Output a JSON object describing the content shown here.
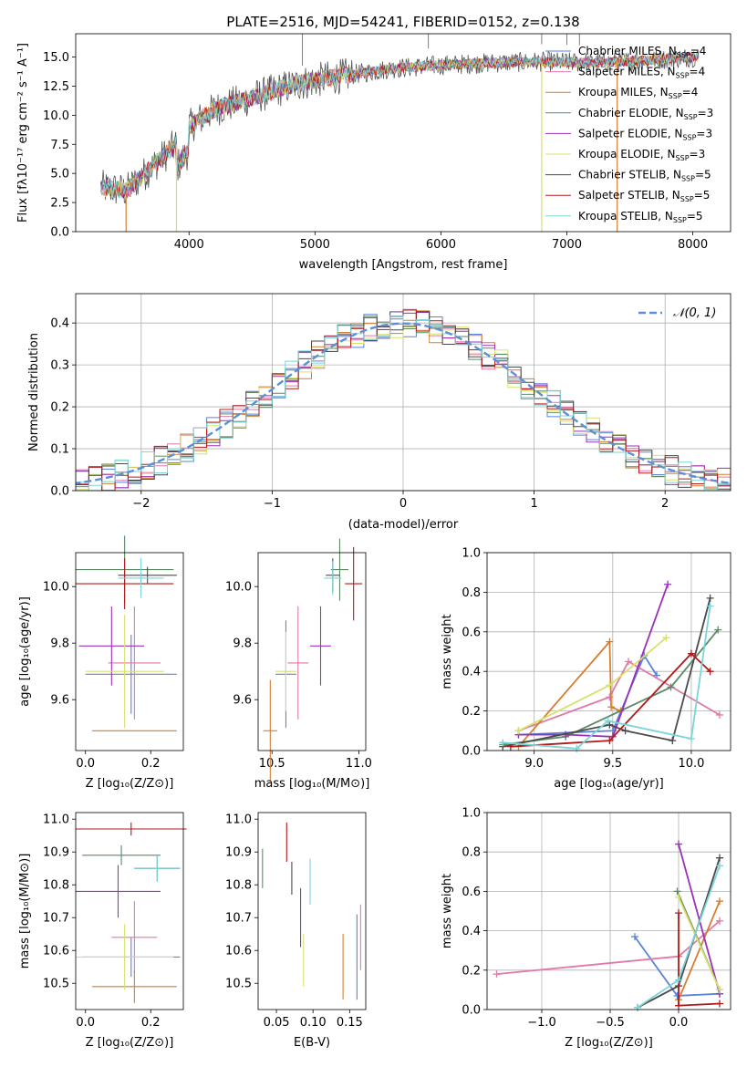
{
  "figure": {
    "title": "PLATE=2516, MJD=54241, FIBERID=0152, z=0.138"
  },
  "chart_data": [
    {
      "id": "spectrum",
      "type": "line",
      "xlabel": "wavelength [Angstrom, rest frame]",
      "ylabel": "Flux [f_λ10^-17 erg cm^-2 s^-1 A^-1]",
      "xlim": [
        3100,
        8300
      ],
      "ylim": [
        0,
        17
      ],
      "xticks": [
        4000,
        5000,
        6000,
        7000,
        8000
      ],
      "yticks": [
        "0.0",
        "2.5",
        "5.0",
        "7.5",
        "10.0",
        "12.5",
        "15.0"
      ],
      "legend_position": "top-right",
      "grid": false,
      "series": [
        {
          "name": "Chabrier MILES, N_SSP=4",
          "color": "#5b83d8"
        },
        {
          "name": "Salpeter MILES, N_SSP=4",
          "color": "#e07aa8"
        },
        {
          "name": "Kroupa MILES, N_SSP=4",
          "color": "#d77e2e"
        },
        {
          "name": "Chabrier ELODIE, N_SSP=3",
          "color": "#5c8a63"
        },
        {
          "name": "Salpeter ELODIE, N_SSP=3",
          "color": "#9b30b8"
        },
        {
          "name": "Kroupa ELODIE, N_SSP=3",
          "color": "#d8e06a"
        },
        {
          "name": "Chabrier STELIB, N_SSP=5",
          "color": "#4a4a4a"
        },
        {
          "name": "Salpeter STELIB, N_SSP=5",
          "color": "#b01a1a"
        },
        {
          "name": "Kroupa STELIB, N_SSP=5",
          "color": "#7ad4d8"
        }
      ],
      "continuum": {
        "x": [
          3300,
          3500,
          3700,
          3900,
          4000,
          4200,
          4500,
          4800,
          5000,
          5300,
          5600,
          6000,
          6400,
          6800,
          7200,
          7600,
          8000
        ],
        "y": [
          3.8,
          3.5,
          5.5,
          7.5,
          9.0,
          10.5,
          11.5,
          12.5,
          13.0,
          13.5,
          14.0,
          14.3,
          14.5,
          14.6,
          14.5,
          14.7,
          15.0
        ]
      },
      "dropouts": [
        3500,
        3900,
        6800,
        7400
      ],
      "spikes": [
        4900,
        5900,
        6800,
        7000,
        7100
      ]
    },
    {
      "id": "residuals",
      "type": "histogram",
      "xlabel": "(data-model)/error",
      "ylabel": "Normed distribution",
      "xlim": [
        -2.5,
        2.5
      ],
      "ylim": [
        0,
        0.47
      ],
      "xticks": [
        "−2",
        "−1",
        "0",
        "1",
        "2"
      ],
      "yticks": [
        "0.0",
        "0.1",
        "0.2",
        "0.3",
        "0.4"
      ],
      "grid": true,
      "bin_width": 0.1,
      "legend": "𝒩(0, 1)",
      "gaussian": {
        "mean": 0,
        "sigma": 1,
        "color": "#5b8fd8"
      }
    },
    {
      "id": "age-vs-Z",
      "type": "errorbar",
      "xlabel": "Z [log10(Z/Z⊙)]",
      "ylabel": "age [log10(age/yr)]",
      "xlim": [
        -0.03,
        0.3
      ],
      "ylim": [
        9.42,
        10.12
      ],
      "xticks": [
        "0.0",
        "0.2"
      ],
      "yticks": [
        "9.6",
        "9.8",
        "10.0"
      ],
      "points": [
        {
          "x": 0.14,
          "y": 9.69,
          "xerr": 0.14,
          "yerr": 0.14,
          "color": "#5b83d8"
        },
        {
          "x": 0.15,
          "y": 9.73,
          "xerr": 0.08,
          "yerr": 0.2,
          "color": "#e07aa8"
        },
        {
          "x": 0.15,
          "y": 9.49,
          "xerr": 0.13,
          "yerr": 0.0,
          "color": "#d77e2e"
        },
        {
          "x": 0.12,
          "y": 10.06,
          "xerr": 0.15,
          "yerr": 0.12,
          "color": "#5c8a63"
        },
        {
          "x": 0.08,
          "y": 9.79,
          "xerr": 0.1,
          "yerr": 0.14,
          "color": "#9b30b8"
        },
        {
          "x": 0.12,
          "y": 9.7,
          "xerr": 0.12,
          "yerr": 0.2,
          "color": "#d8e06a"
        },
        {
          "x": 0.19,
          "y": 10.04,
          "xerr": 0.09,
          "yerr": 0.03,
          "color": "#4a4a4a"
        },
        {
          "x": 0.12,
          "y": 10.01,
          "xerr": 0.15,
          "yerr": 0.09,
          "color": "#b01a1a"
        },
        {
          "x": 0.17,
          "y": 10.03,
          "xerr": 0.07,
          "yerr": 0.07,
          "color": "#7ad4d8"
        }
      ]
    },
    {
      "id": "age-vs-mass",
      "type": "errorbar",
      "xlabel": "mass [log10(M/M⊙)]",
      "ylabel": "",
      "xlim": [
        10.42,
        11.04
      ],
      "ylim": [
        9.42,
        10.12
      ],
      "xticks": [
        "10.5",
        "11.0"
      ],
      "yticks": [
        "9.6",
        "9.8",
        "10.0"
      ],
      "points": [
        {
          "x": 10.58,
          "y": 9.69,
          "xerr": 0.06,
          "yerr": 0.19,
          "color": "#5b83d8"
        },
        {
          "x": 10.65,
          "y": 9.73,
          "xerr": 0.06,
          "yerr": 0.2,
          "color": "#e07aa8"
        },
        {
          "x": 10.49,
          "y": 9.49,
          "xerr": 0.04,
          "yerr": 0.18,
          "color": "#d77e2e"
        },
        {
          "x": 10.89,
          "y": 10.06,
          "xerr": 0.05,
          "yerr": 0.11,
          "color": "#5c8a63"
        },
        {
          "x": 10.78,
          "y": 9.79,
          "xerr": 0.06,
          "yerr": 0.14,
          "color": "#9b30b8"
        },
        {
          "x": 10.58,
          "y": 9.7,
          "xerr": 0.06,
          "yerr": 0.14,
          "color": "#d8e06a"
        },
        {
          "x": 10.85,
          "y": 10.04,
          "xerr": 0.04,
          "yerr": 0.06,
          "color": "#4a4a4a"
        },
        {
          "x": 10.97,
          "y": 10.01,
          "xerr": 0.05,
          "yerr": 0.13,
          "color": "#b01a1a"
        },
        {
          "x": 10.85,
          "y": 10.03,
          "xerr": 0.05,
          "yerr": 0.06,
          "color": "#7ad4d8"
        }
      ]
    },
    {
      "id": "weight-vs-age",
      "type": "line",
      "xlabel": "age [log10(age/yr)]",
      "ylabel": "mass weight",
      "xlim": [
        8.7,
        10.25
      ],
      "ylim": [
        0,
        1
      ],
      "xticks": [
        "9.0",
        "9.5",
        "10.0"
      ],
      "yticks": [
        "0.0",
        "0.2",
        "0.4",
        "0.6",
        "0.8",
        "1.0"
      ],
      "grid": true,
      "series": [
        {
          "color": "#5b83d8",
          "points": [
            [
              8.9,
              0.08
            ],
            [
              9.5,
              0.1
            ],
            [
              9.7,
              0.48
            ],
            [
              9.78,
              0.38
            ]
          ]
        },
        {
          "color": "#e07aa8",
          "points": [
            [
              8.9,
              0.1
            ],
            [
              9.48,
              0.27
            ],
            [
              9.6,
              0.45
            ],
            [
              10.18,
              0.18
            ]
          ]
        },
        {
          "color": "#d77e2e",
          "points": [
            [
              8.9,
              0.02
            ],
            [
              9.48,
              0.55
            ],
            [
              9.49,
              0.22
            ],
            [
              9.55,
              0.2
            ]
          ]
        },
        {
          "color": "#5c8a63",
          "points": [
            [
              8.8,
              0.03
            ],
            [
              9.2,
              0.07
            ],
            [
              9.87,
              0.32
            ],
            [
              10.17,
              0.61
            ]
          ]
        },
        {
          "color": "#9b30b8",
          "points": [
            [
              8.9,
              0.08
            ],
            [
              9.2,
              0.08
            ],
            [
              9.5,
              0.07
            ],
            [
              9.85,
              0.84
            ]
          ]
        },
        {
          "color": "#d8e06a",
          "points": [
            [
              8.9,
              0.1
            ],
            [
              9.48,
              0.33
            ],
            [
              9.84,
              0.57
            ]
          ]
        },
        {
          "color": "#4a4a4a",
          "points": [
            [
              8.8,
              0.02
            ],
            [
              9.48,
              0.13
            ],
            [
              9.58,
              0.1
            ],
            [
              9.88,
              0.05
            ],
            [
              10.12,
              0.77
            ]
          ]
        },
        {
          "color": "#b01a1a",
          "points": [
            [
              8.85,
              0.02
            ],
            [
              9.48,
              0.05
            ],
            [
              10.0,
              0.49
            ],
            [
              10.12,
              0.4
            ]
          ]
        },
        {
          "color": "#7ad4d8",
          "points": [
            [
              8.8,
              0.04
            ],
            [
              9.27,
              0.01
            ],
            [
              9.47,
              0.15
            ],
            [
              10.0,
              0.06
            ],
            [
              10.12,
              0.73
            ]
          ]
        }
      ]
    },
    {
      "id": "mass-vs-Z",
      "type": "errorbar",
      "xlabel": "Z [log10(Z/Z⊙)]",
      "ylabel": "mass [log10(M/M⊙)]",
      "xlim": [
        -0.03,
        0.3
      ],
      "ylim": [
        10.42,
        11.02
      ],
      "xticks": [
        "0.0",
        "0.2"
      ],
      "yticks": [
        "10.5",
        "10.6",
        "10.7",
        "10.8",
        "10.9",
        "11.0"
      ],
      "points": [
        {
          "x": 0.14,
          "y": 10.58,
          "xerr": 0.15,
          "yerr": 0.06,
          "color": "#5b83d8"
        },
        {
          "x": 0.15,
          "y": 10.64,
          "xerr": 0.07,
          "yerr": 0.11,
          "color": "#e07aa8"
        },
        {
          "x": 0.15,
          "y": 10.49,
          "xerr": 0.13,
          "yerr": 0.05,
          "color": "#d77e2e"
        },
        {
          "x": 0.11,
          "y": 10.89,
          "xerr": 0.12,
          "yerr": 0.03,
          "color": "#5c8a63"
        },
        {
          "x": 0.1,
          "y": 10.78,
          "xerr": 0.13,
          "yerr": 0.08,
          "color": "#9b30b8"
        },
        {
          "x": 0.12,
          "y": 10.58,
          "xerr": 0.15,
          "yerr": 0.1,
          "color": "#d8e06a"
        },
        {
          "x": 0.22,
          "y": 10.85,
          "xerr": 0.07,
          "yerr": 0.04,
          "color": "#4a4a4a"
        },
        {
          "x": 0.14,
          "y": 10.97,
          "xerr": 0.17,
          "yerr": 0.02,
          "color": "#b01a1a"
        },
        {
          "x": 0.22,
          "y": 10.85,
          "xerr": 0.07,
          "yerr": 0.04,
          "color": "#7ad4d8"
        }
      ]
    },
    {
      "id": "mass-vs-ebv",
      "type": "errorbar",
      "xlabel": "E(B-V)",
      "ylabel": "",
      "xlim": [
        0.025,
        0.172
      ],
      "ylim": [
        10.42,
        11.02
      ],
      "xticks": [
        "0.05",
        "0.10",
        "0.15"
      ],
      "yticks": [
        "10.5",
        "10.6",
        "10.7",
        "10.8",
        "10.9",
        "11.0"
      ],
      "points": [
        {
          "x": 0.16,
          "y": 10.58,
          "xerr": 0,
          "yerr": 0.13,
          "color": "#5b83d8"
        },
        {
          "x": 0.165,
          "y": 10.64,
          "xerr": 0,
          "yerr": 0.1,
          "color": "#e07aa8"
        },
        {
          "x": 0.141,
          "y": 10.55,
          "xerr": 0,
          "yerr": 0.1,
          "color": "#d77e2e"
        },
        {
          "x": 0.031,
          "y": 10.85,
          "xerr": 0,
          "yerr": 0.06,
          "color": "#5c8a63"
        },
        {
          "x": 0.083,
          "y": 10.7,
          "xerr": 0,
          "yerr": 0.09,
          "color": "#9b30b8"
        },
        {
          "x": 0.087,
          "y": 10.57,
          "xerr": 0,
          "yerr": 0.08,
          "color": "#d8e06a"
        },
        {
          "x": 0.071,
          "y": 10.82,
          "xerr": 0,
          "yerr": 0.05,
          "color": "#4a4a4a"
        },
        {
          "x": 0.064,
          "y": 10.93,
          "xerr": 0,
          "yerr": 0.06,
          "color": "#b01a1a"
        },
        {
          "x": 0.096,
          "y": 10.81,
          "xerr": 0,
          "yerr": 0.07,
          "color": "#7ad4d8"
        }
      ]
    },
    {
      "id": "weight-vs-Z",
      "type": "line",
      "xlabel": "Z [log10(Z/Z⊙)]",
      "ylabel": "mass weight",
      "xlim": [
        -1.4,
        0.38
      ],
      "ylim": [
        0,
        1
      ],
      "xticks": [
        "−1.0",
        "−0.5",
        "0.0"
      ],
      "yticks": [
        "0.0",
        "0.2",
        "0.4",
        "0.6",
        "0.8",
        "1.0"
      ],
      "grid": true,
      "series": [
        {
          "color": "#5b83d8",
          "points": [
            [
              -0.32,
              0.37
            ],
            [
              -0.01,
              0.07
            ],
            [
              0.3,
              0.08
            ]
          ]
        },
        {
          "color": "#e07aa8",
          "points": [
            [
              -1.33,
              0.18
            ],
            [
              0.0,
              0.27
            ],
            [
              0.3,
              0.45
            ]
          ]
        },
        {
          "color": "#d77e2e",
          "points": [
            [
              0.0,
              0.05
            ],
            [
              0.3,
              0.55
            ]
          ]
        },
        {
          "color": "#5c8a63",
          "points": [
            [
              -0.01,
              0.6
            ],
            [
              0.3,
              0.1
            ]
          ]
        },
        {
          "color": "#9b30b8",
          "points": [
            [
              0.0,
              0.84
            ],
            [
              0.3,
              0.08
            ]
          ]
        },
        {
          "color": "#d8e06a",
          "points": [
            [
              0.0,
              0.57
            ],
            [
              0.3,
              0.1
            ]
          ]
        },
        {
          "color": "#4a4a4a",
          "points": [
            [
              -0.3,
              0.01
            ],
            [
              0.0,
              0.12
            ],
            [
              0.3,
              0.77
            ]
          ]
        },
        {
          "color": "#b01a1a",
          "points": [
            [
              0.0,
              0.49
            ],
            [
              0.0,
              0.02
            ],
            [
              0.3,
              0.03
            ]
          ]
        },
        {
          "color": "#7ad4d8",
          "points": [
            [
              -0.3,
              0.01
            ],
            [
              0.0,
              0.15
            ],
            [
              0.3,
              0.73
            ]
          ]
        }
      ]
    }
  ]
}
